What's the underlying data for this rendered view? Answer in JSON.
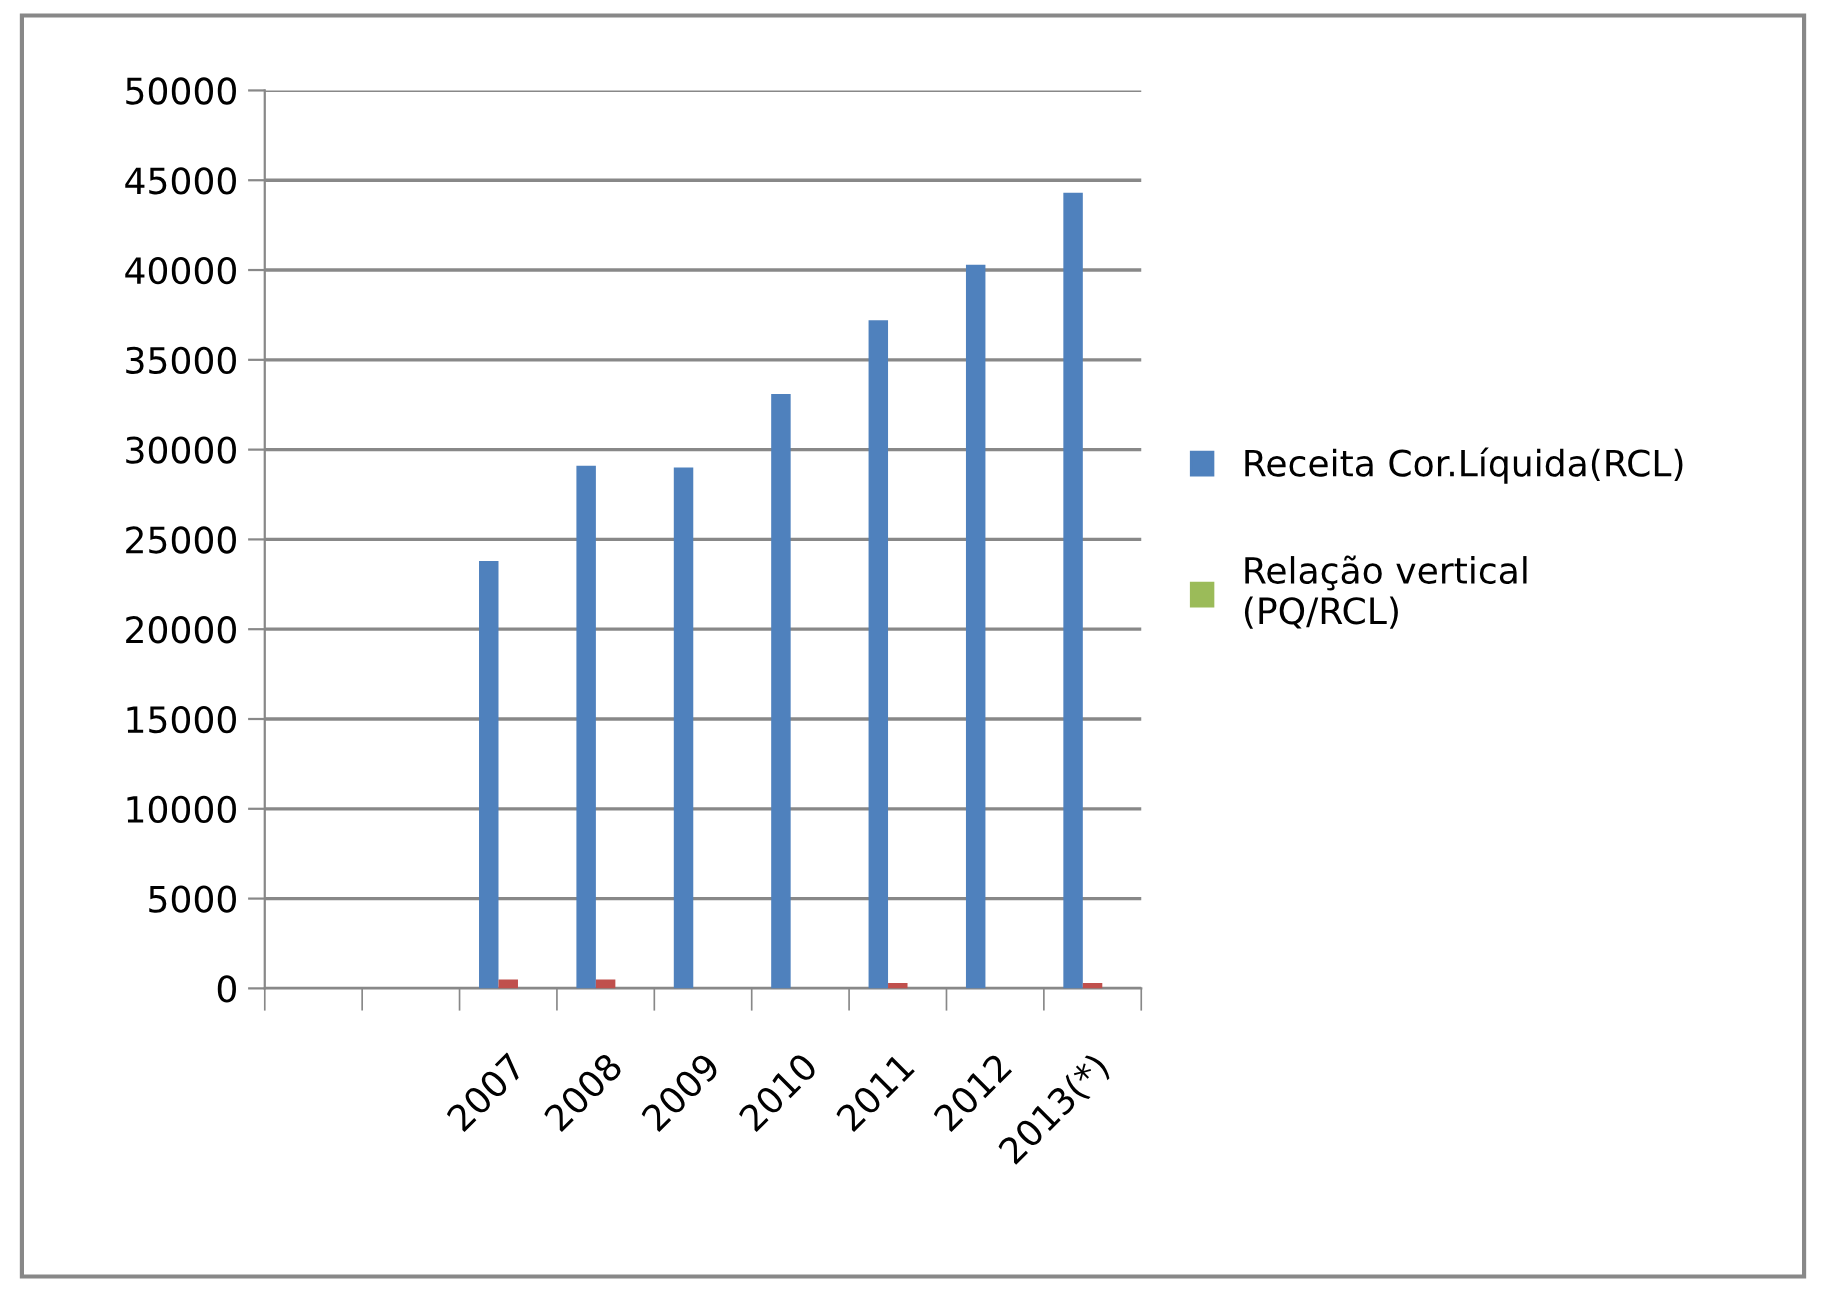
{
  "chart_data": {
    "type": "bar",
    "categories": [
      null,
      null,
      "2007",
      "2008",
      "2009",
      "2010",
      "2011",
      "2012",
      "2013(*)"
    ],
    "series": [
      {
        "name": "Receita Cor.Líquida(RCL)",
        "color": "#4f81bd",
        "values": [
          null,
          null,
          23800,
          29100,
          29000,
          33100,
          37200,
          40300,
          44300
        ]
      },
      {
        "color": "#c0504d",
        "values": [
          null,
          null,
          500,
          500,
          null,
          null,
          300,
          null,
          300
        ]
      },
      {
        "name": "Relação vertical\n(PQ/RCL)",
        "color": "#9bbb59",
        "values": [
          null,
          null,
          0,
          0,
          0,
          0,
          0,
          0,
          0
        ]
      }
    ],
    "ylim": [
      0,
      50000
    ],
    "yticks": [
      0,
      5000,
      10000,
      15000,
      20000,
      25000,
      30000,
      35000,
      40000,
      45000,
      50000
    ],
    "grid": "y",
    "legend": "right"
  }
}
